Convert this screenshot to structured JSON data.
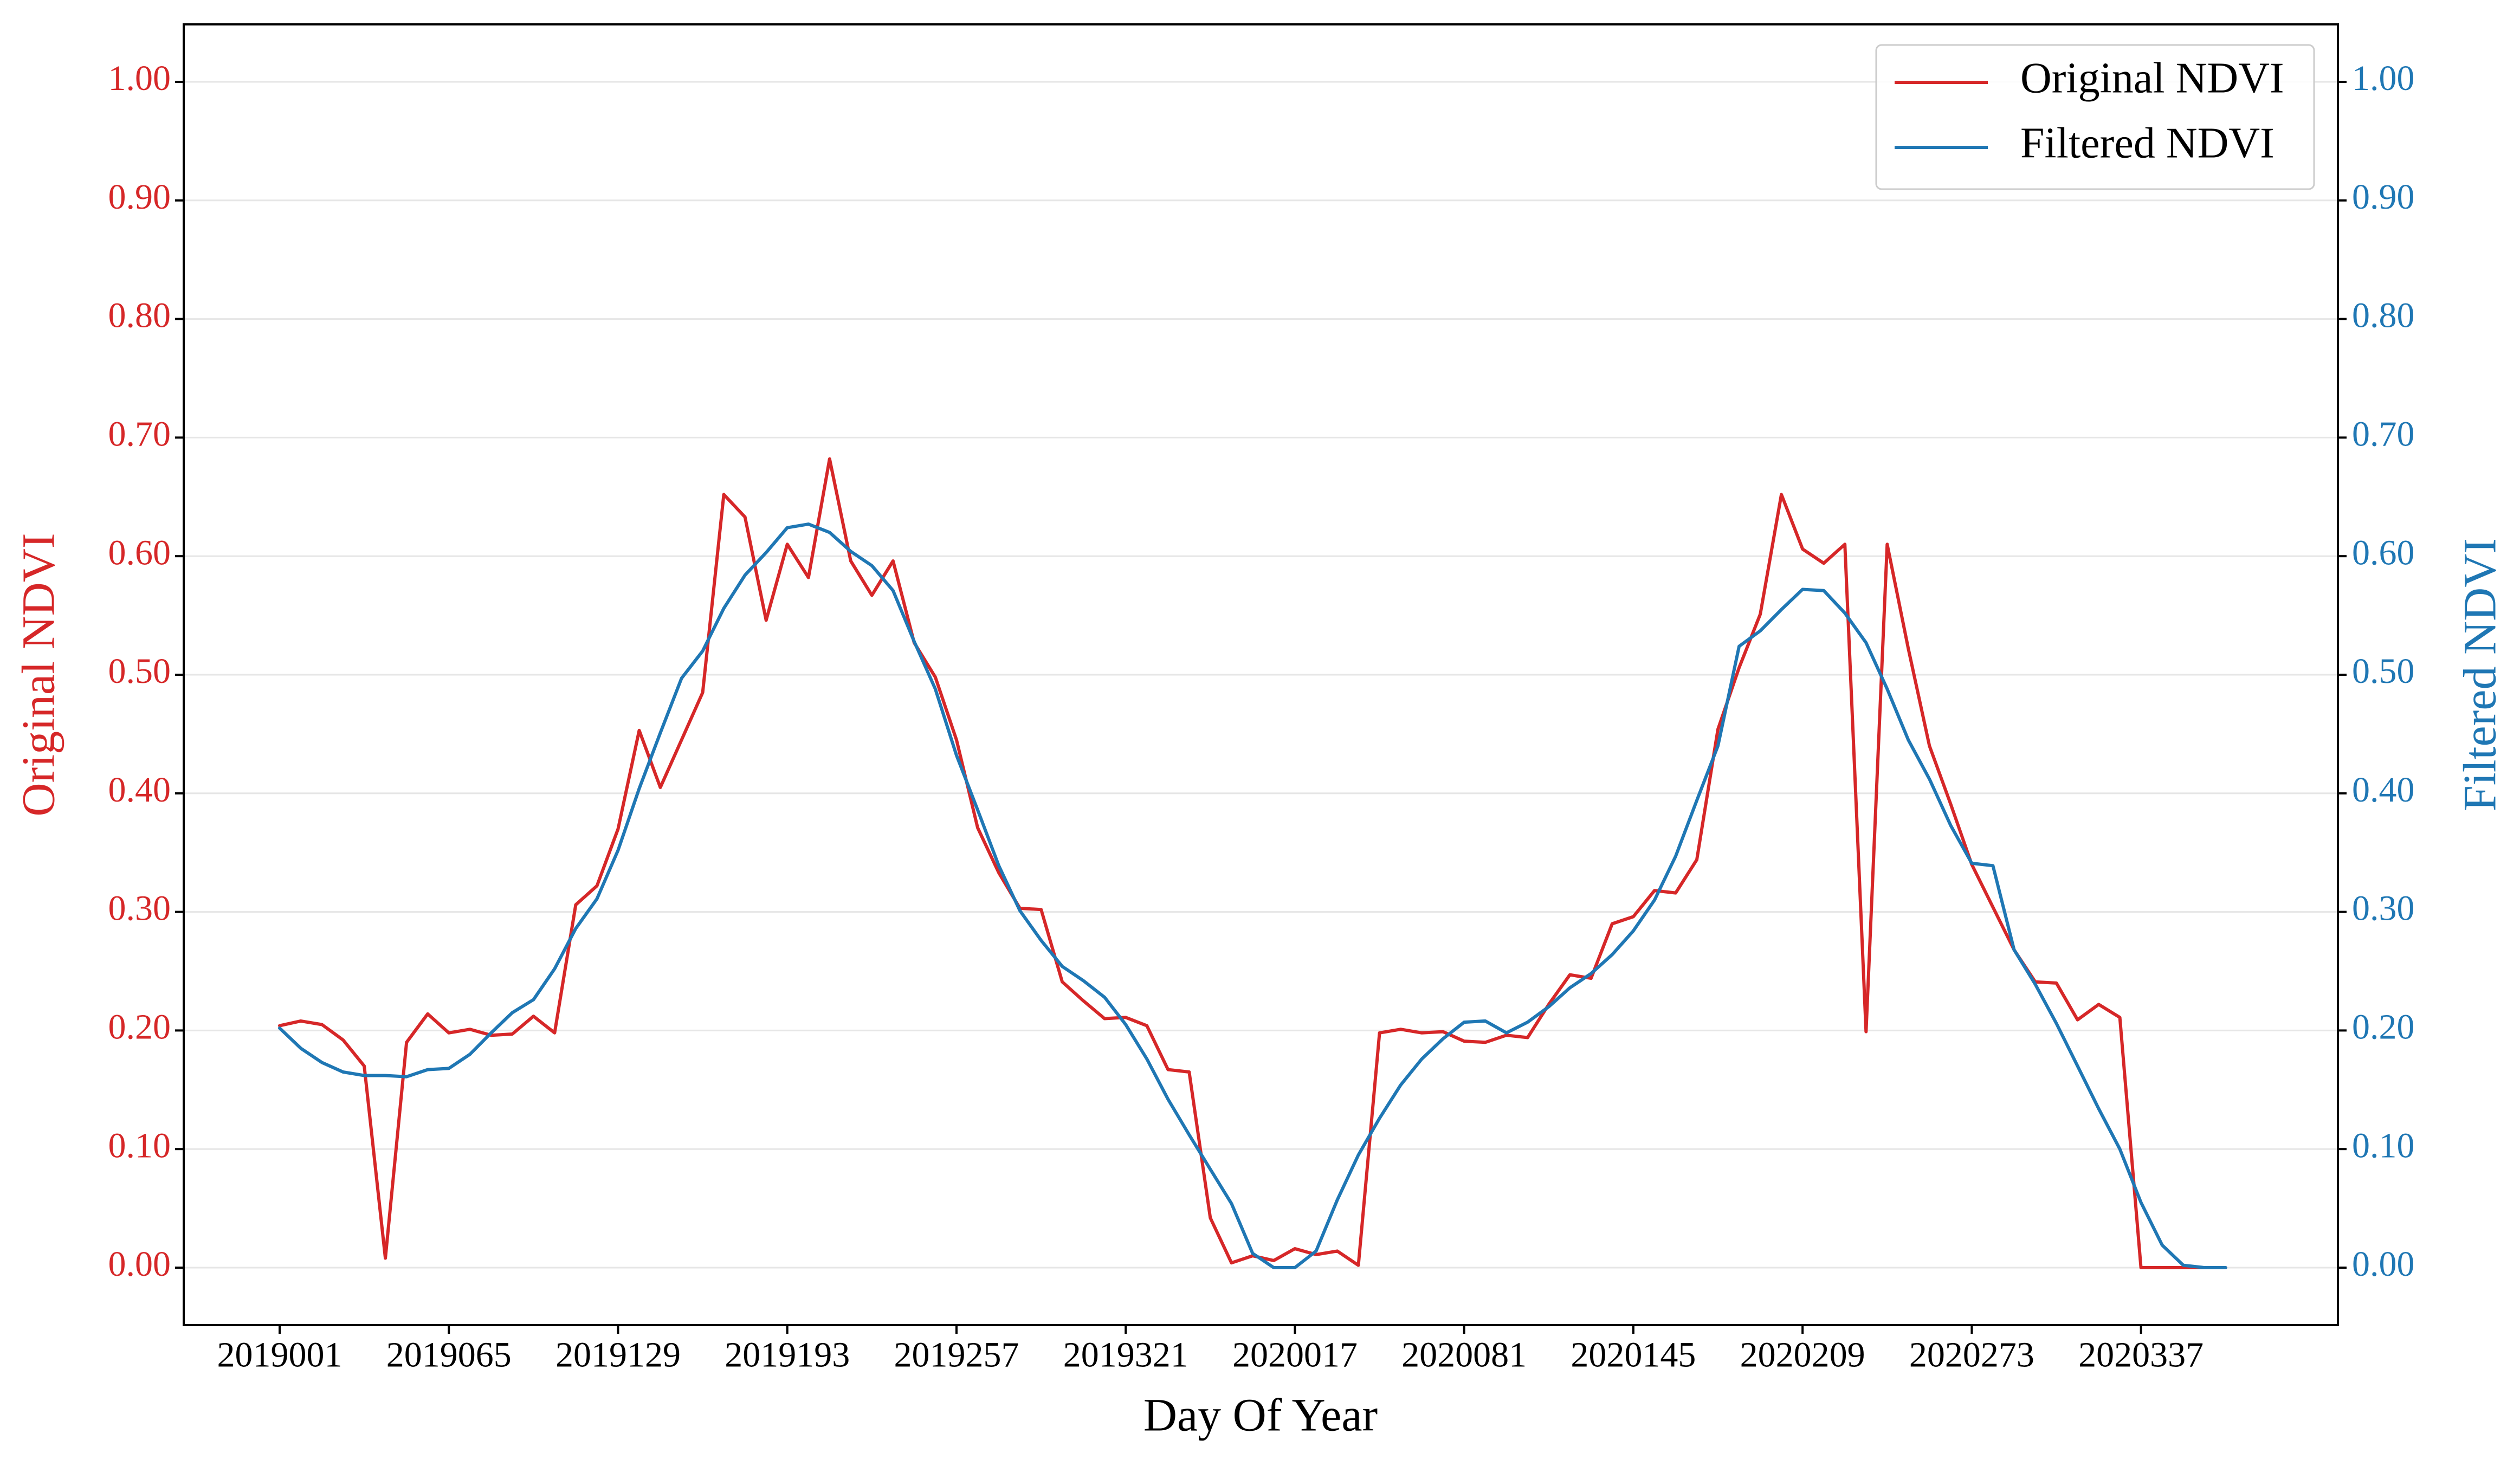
{
  "chart_data": {
    "type": "line",
    "xlabel": "Day Of Year",
    "ylabel_left": "Original NDVI",
    "ylabel_right": "Filtered NDVI",
    "ylim": [
      -0.05,
      1.05
    ],
    "y_ticks": [
      "0.00",
      "0.10",
      "0.20",
      "0.30",
      "0.40",
      "0.50",
      "0.60",
      "0.70",
      "0.80",
      "0.90",
      "1.00"
    ],
    "x_tick_labels": [
      "2019001",
      "2019065",
      "2019129",
      "2019193",
      "2019257",
      "2019321",
      "2020017",
      "2020081",
      "2020145",
      "2020209",
      "2020273",
      "2020337"
    ],
    "grid": true,
    "legend_position": "top-right",
    "colors": {
      "original": "#d62728",
      "filtered": "#1f77b4",
      "axis": "#000000",
      "grid": "#e6e6e6"
    },
    "series": [
      {
        "name": "Original NDVI",
        "axis": "left",
        "values": [
          0.204,
          0.208,
          0.205,
          0.192,
          0.17,
          0.008,
          0.19,
          0.214,
          0.198,
          0.201,
          0.196,
          0.197,
          0.212,
          0.198,
          0.306,
          0.322,
          0.37,
          0.453,
          0.405,
          0.445,
          0.485,
          0.652,
          0.633,
          0.546,
          0.61,
          0.582,
          0.682,
          0.596,
          0.567,
          0.596,
          0.527,
          0.498,
          0.445,
          0.371,
          0.333,
          0.303,
          0.302,
          0.241,
          0.225,
          0.21,
          0.211,
          0.204,
          0.167,
          0.165,
          0.042,
          0.004,
          0.01,
          0.006,
          0.016,
          0.011,
          0.014,
          0.002,
          0.198,
          0.201,
          0.198,
          0.199,
          0.191,
          0.19,
          0.196,
          0.194,
          0.222,
          0.247,
          0.244,
          0.29,
          0.296,
          0.318,
          0.316,
          0.344,
          0.454,
          0.506,
          0.551,
          0.652,
          0.606,
          0.594,
          0.61,
          0.199,
          0.61,
          0.522,
          0.44,
          0.391,
          0.34,
          0.304,
          0.268,
          0.241,
          0.24,
          0.209,
          0.222,
          0.211,
          0.0,
          0.0,
          0.0,
          0.0,
          0.0
        ]
      },
      {
        "name": "Filtered NDVI",
        "axis": "right",
        "values": [
          0.202,
          0.185,
          0.173,
          0.165,
          0.162,
          0.162,
          0.161,
          0.167,
          0.168,
          0.18,
          0.198,
          0.215,
          0.226,
          0.252,
          0.286,
          0.311,
          0.352,
          0.404,
          0.451,
          0.497,
          0.52,
          0.556,
          0.584,
          0.603,
          0.624,
          0.627,
          0.62,
          0.604,
          0.592,
          0.571,
          0.528,
          0.488,
          0.432,
          0.386,
          0.339,
          0.301,
          0.276,
          0.254,
          0.242,
          0.228,
          0.205,
          0.176,
          0.142,
          0.112,
          0.083,
          0.054,
          0.012,
          0.0,
          0.0,
          0.014,
          0.057,
          0.095,
          0.126,
          0.154,
          0.176,
          0.193,
          0.207,
          0.208,
          0.198,
          0.207,
          0.22,
          0.236,
          0.248,
          0.264,
          0.284,
          0.31,
          0.347,
          0.394,
          0.44,
          0.524,
          0.537,
          0.555,
          0.572,
          0.571,
          0.552,
          0.527,
          0.488,
          0.445,
          0.412,
          0.373,
          0.341,
          0.339,
          0.268,
          0.239,
          0.206,
          0.17,
          0.134,
          0.1,
          0.055,
          0.019,
          0.002,
          0.0,
          0.0
        ]
      }
    ]
  }
}
